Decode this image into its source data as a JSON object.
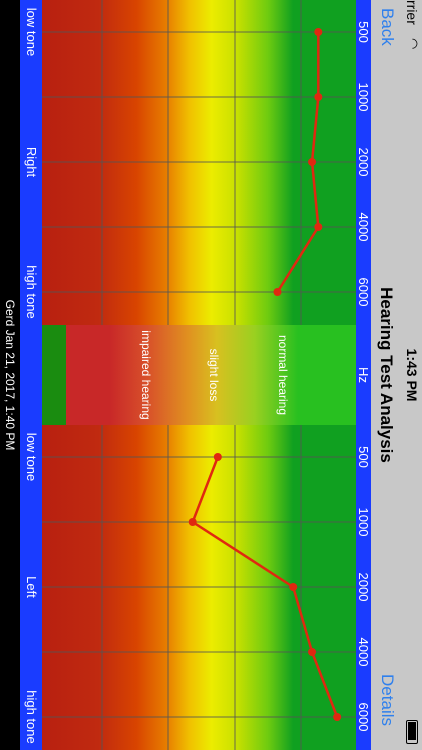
{
  "status": {
    "carrier": "rrier",
    "time": "1:43 PM"
  },
  "nav": {
    "back": "Back",
    "title": "Hearing Test Analysis",
    "details": "Details"
  },
  "freq_labels": {
    "left_group": [
      "500",
      "1000",
      "2000",
      "4000",
      "6000"
    ],
    "middle": "Hz",
    "right_group": [
      "500",
      "1000",
      "2000",
      "4000",
      "6000"
    ]
  },
  "legend": {
    "normal": "normal hearing",
    "slight": "slight loss",
    "impaired": "impaired hearing"
  },
  "ear_labels": {
    "right": {
      "low": "low tone",
      "name": "Right",
      "high": "high tone"
    },
    "left": {
      "low": "low tone",
      "name": "Left",
      "high": "high tone"
    }
  },
  "footer": {
    "text": "Gerd Jan 21, 2017, 1:40 PM"
  },
  "colors": {
    "line": "#e02810",
    "bar": "#1a3cff",
    "nav_link": "#2f80ed"
  },
  "chart_data": {
    "type": "line",
    "categories": [
      "500",
      "1000",
      "2000",
      "4000",
      "6000"
    ],
    "series": [
      {
        "name": "Right",
        "values": [
          0.88,
          0.88,
          0.86,
          0.88,
          0.75
        ]
      },
      {
        "name": "Left",
        "values": [
          0.56,
          0.48,
          0.8,
          0.86,
          0.94
        ]
      }
    ],
    "ylim": [
      0,
      1
    ]
  }
}
